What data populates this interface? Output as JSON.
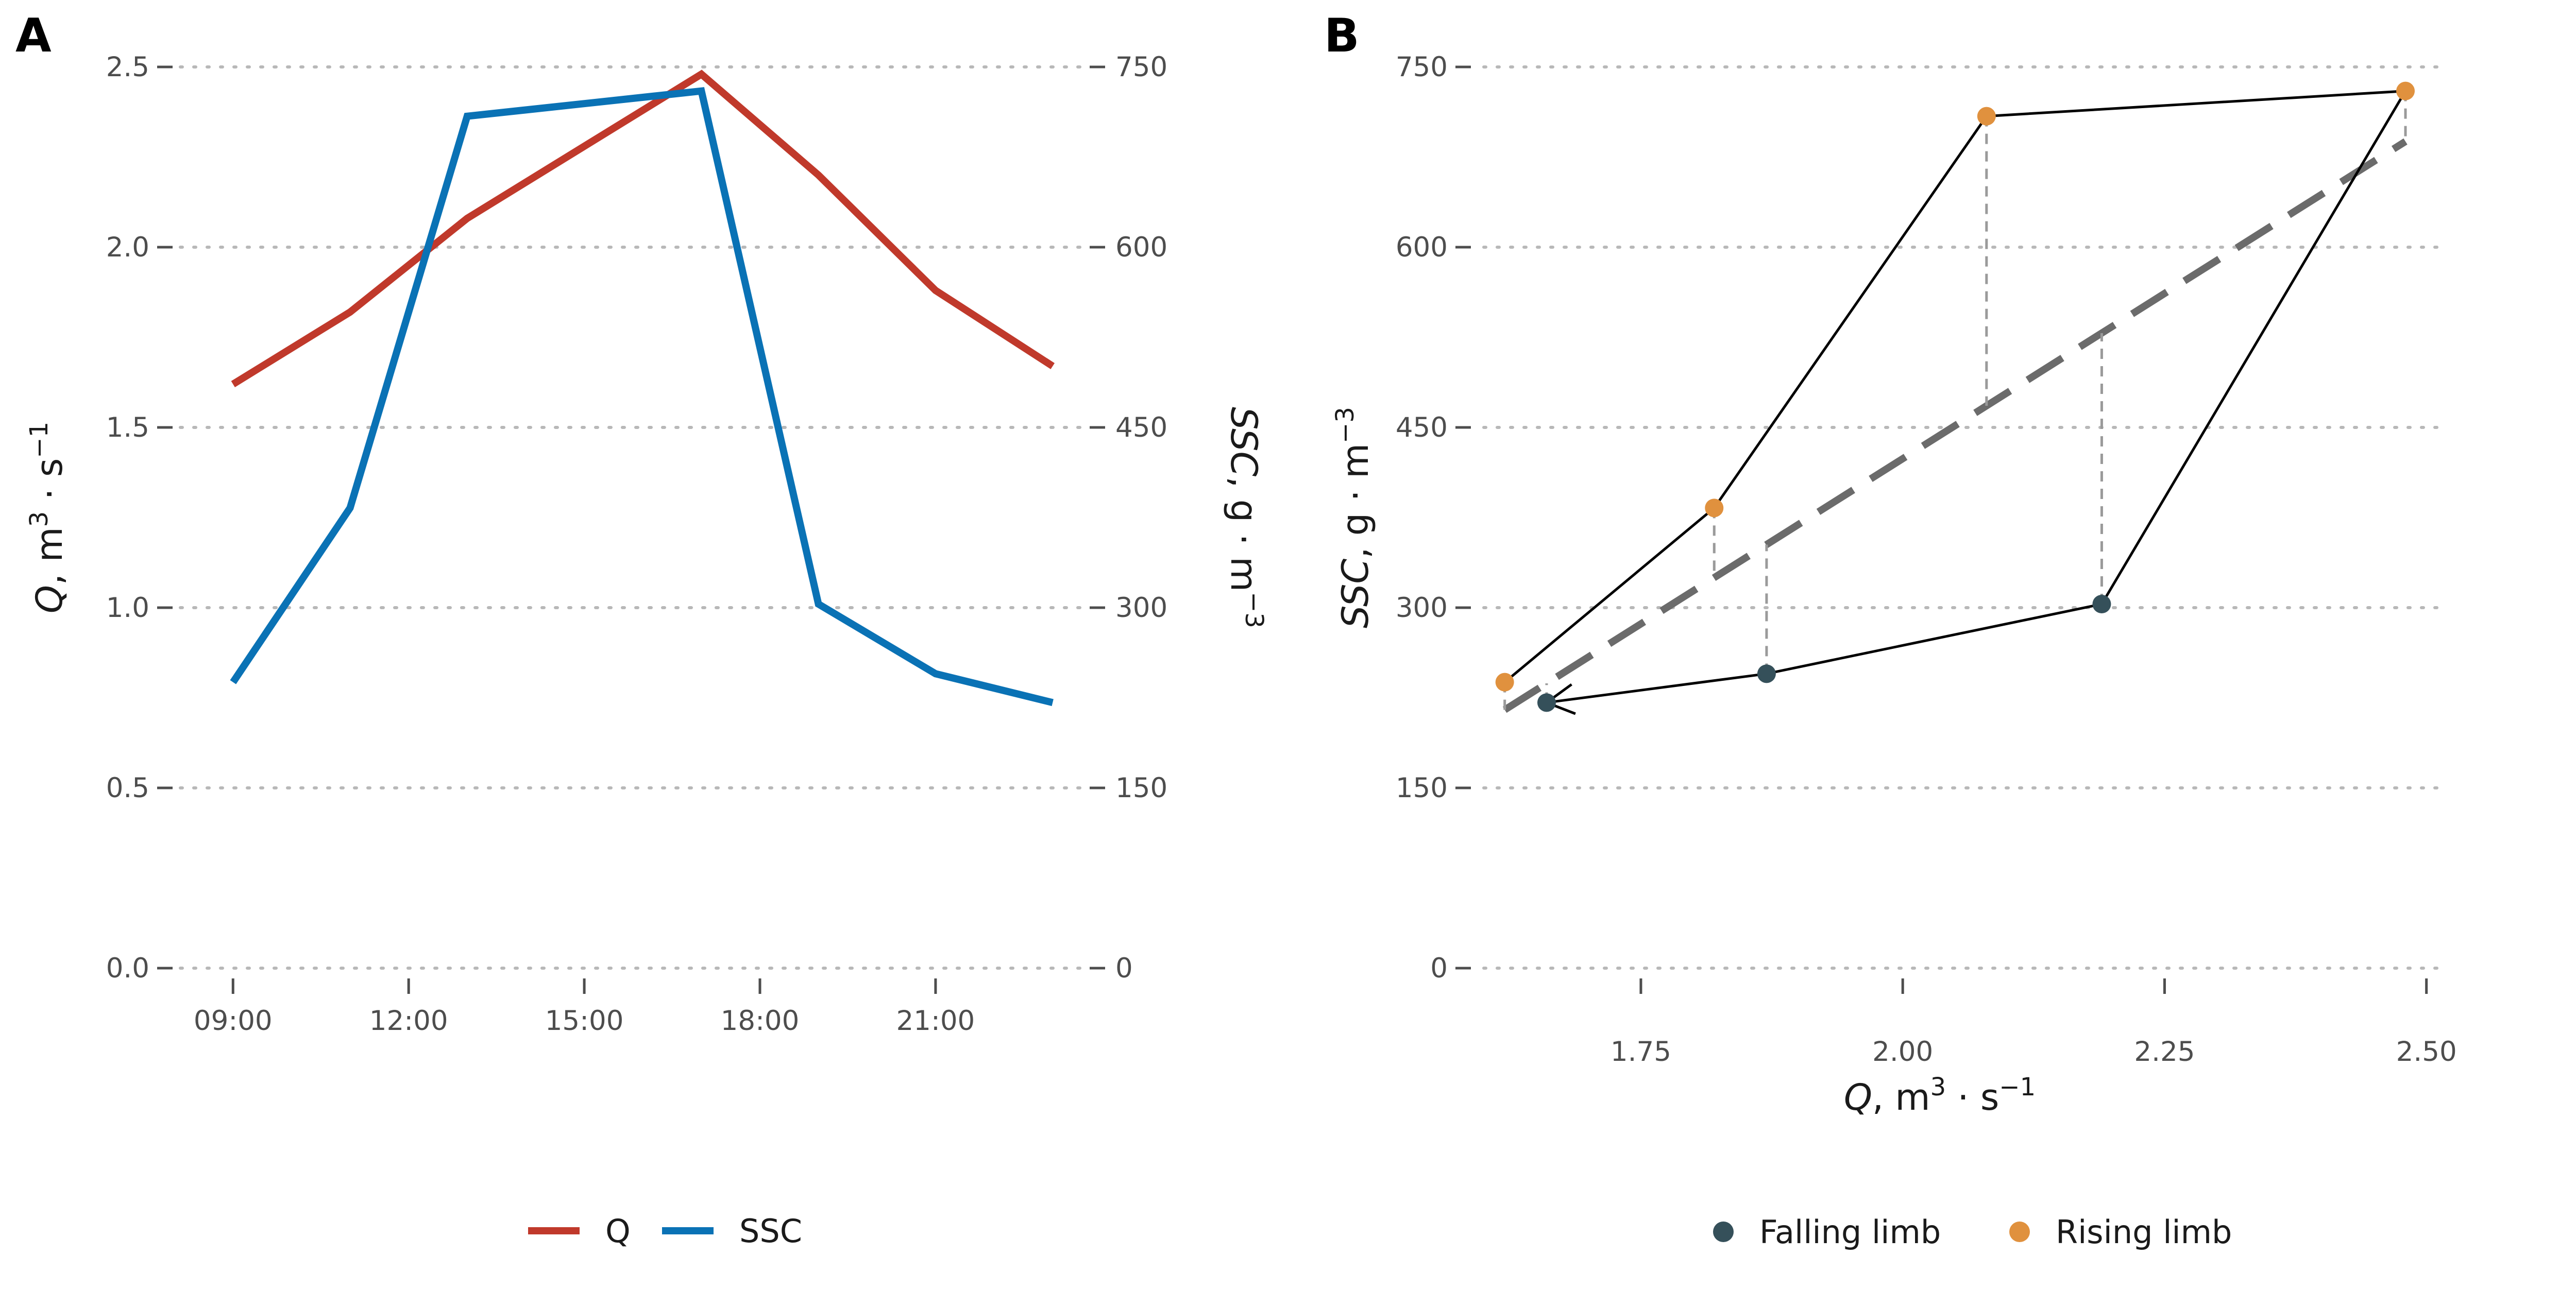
{
  "colors": {
    "q": "#c0392b",
    "ssc": "#0a72b5",
    "falling": "#35505a",
    "rising": "#e0913e",
    "grid": "#b8b8b8",
    "fit": "#6b6b6b",
    "drop": "#9a9a9a"
  },
  "chart_data": [
    {
      "panel": "A",
      "type": "line",
      "title": "",
      "xlabel": "",
      "ylabel_left": {
        "var": "Q",
        "rest": ", m",
        "sup1": "3",
        "mid": " · s",
        "sup2": "−1"
      },
      "ylabel_right": {
        "var": "SSC",
        "rest": ", g · m",
        "sup": "−3"
      },
      "x_hours": [
        9,
        11,
        13,
        15,
        17,
        19,
        21,
        23
      ],
      "x_tick_labels": [
        "09:00",
        "12:00",
        "15:00",
        "18:00",
        "21:00"
      ],
      "x_tick_hours": [
        9,
        12,
        15,
        18,
        21
      ],
      "ylim_left": [
        0,
        2.5
      ],
      "y_ticks_left": [
        "0.0",
        "0.5",
        "1.0",
        "1.5",
        "2.0",
        "2.5"
      ],
      "ylim_right": [
        0,
        750
      ],
      "y_ticks_right": [
        "0",
        "150",
        "300",
        "450",
        "600",
        "750"
      ],
      "series": [
        {
          "name": "Q",
          "axis": "left",
          "points": [
            [
              9,
              1.62
            ],
            [
              11,
              1.82
            ],
            [
              13,
              2.08
            ],
            [
              15,
              2.28
            ],
            [
              17,
              2.48
            ],
            [
              19,
              2.2
            ],
            [
              21,
              1.88
            ],
            [
              23,
              1.67
            ]
          ]
        },
        {
          "name": "SSC",
          "axis": "right",
          "points": [
            [
              9,
              238
            ],
            [
              11,
              383
            ],
            [
              13,
              709
            ],
            [
              17,
              730
            ],
            [
              19,
              303
            ],
            [
              21,
              245
            ],
            [
              23,
              221
            ]
          ]
        }
      ],
      "grid": "horizontal dotted",
      "legend": "bottom"
    },
    {
      "panel": "B",
      "type": "scatter",
      "title": "",
      "xlabel": {
        "var": "Q",
        "rest": ", m",
        "sup1": "3",
        "mid": " · s",
        "sup2": "−1"
      },
      "ylabel": {
        "var": "SSC",
        "rest": ", g · m",
        "sup": "−3"
      },
      "xlim": [
        1.6,
        2.51
      ],
      "x_ticks": [
        "1.75",
        "2.00",
        "2.25",
        "2.50"
      ],
      "ylim": [
        0,
        750
      ],
      "y_ticks": [
        "0",
        "150",
        "300",
        "450",
        "600",
        "750"
      ],
      "points_sequence": [
        {
          "q": 1.62,
          "ssc": 238,
          "limb": "Rising limb"
        },
        {
          "q": 1.82,
          "ssc": 383,
          "limb": "Rising limb"
        },
        {
          "q": 2.08,
          "ssc": 709,
          "limb": "Rising limb"
        },
        {
          "q": 2.48,
          "ssc": 730,
          "limb": "Rising limb"
        },
        {
          "q": 2.19,
          "ssc": 303,
          "limb": "Falling limb"
        },
        {
          "q": 1.87,
          "ssc": 245,
          "limb": "Falling limb"
        },
        {
          "q": 1.66,
          "ssc": 221,
          "limb": "Falling limb"
        }
      ],
      "fit_line": {
        "from": [
          1.62,
          215
        ],
        "to": [
          2.48,
          688
        ],
        "style": "dashed"
      },
      "residuals": "dashed vertical segments from each point to the fit line",
      "arrow": "arrowhead at the last point of the loop",
      "grid": "horizontal dotted",
      "legend": "bottom",
      "legend_entries": [
        "Falling limb",
        "Rising limb"
      ]
    }
  ]
}
